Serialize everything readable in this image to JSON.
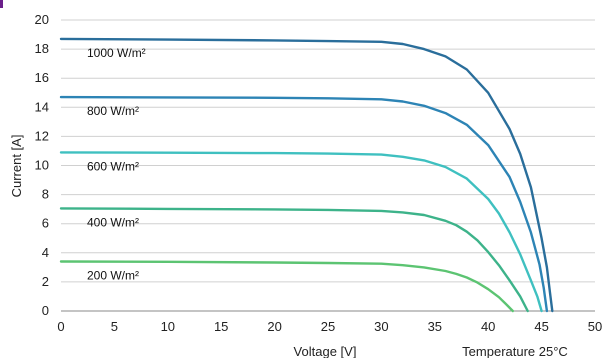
{
  "chart_data": {
    "type": "line",
    "xlabel": "Voltage [V]",
    "ylabel": "Current [A]",
    "note": "Temperature 25°C",
    "xlim": [
      0,
      50
    ],
    "ylim": [
      0,
      20
    ],
    "xticks": [
      0,
      5,
      10,
      15,
      20,
      25,
      30,
      35,
      40,
      45,
      50
    ],
    "yticks": [
      0,
      2,
      4,
      6,
      8,
      10,
      12,
      14,
      16,
      18,
      20
    ],
    "grid": "horizontal",
    "series": [
      {
        "name": "1000 W/m²",
        "color": "#2a6e9b",
        "x": [
          0,
          10,
          20,
          25,
          30,
          32,
          34,
          36,
          38,
          40,
          42,
          43,
          44,
          45,
          45.5,
          45.8,
          46.0
        ],
        "y": [
          18.7,
          18.65,
          18.6,
          18.55,
          18.5,
          18.35,
          18.0,
          17.5,
          16.6,
          15.0,
          12.5,
          10.8,
          8.5,
          5.0,
          3.0,
          1.2,
          0
        ]
      },
      {
        "name": "800 W/m²",
        "color": "#2d84b5",
        "x": [
          0,
          10,
          20,
          25,
          30,
          32,
          34,
          36,
          38,
          40,
          42,
          43,
          44,
          44.8,
          45.2,
          45.5
        ],
        "y": [
          14.7,
          14.68,
          14.65,
          14.62,
          14.55,
          14.4,
          14.1,
          13.6,
          12.8,
          11.4,
          9.2,
          7.5,
          5.4,
          3.2,
          1.6,
          0
        ]
      },
      {
        "name": "600 W/m²",
        "color": "#3fc0c0",
        "x": [
          0,
          10,
          20,
          25,
          30,
          32,
          34,
          36,
          38,
          40,
          41,
          42,
          43,
          44,
          44.6,
          45.0
        ],
        "y": [
          10.9,
          10.88,
          10.85,
          10.82,
          10.75,
          10.6,
          10.35,
          9.9,
          9.1,
          7.7,
          6.7,
          5.4,
          3.9,
          2.1,
          1.0,
          0
        ]
      },
      {
        "name": "400 W/m²",
        "color": "#3db38a",
        "x": [
          0,
          10,
          20,
          25,
          30,
          32,
          34,
          36,
          37,
          38,
          39,
          40,
          41,
          42,
          43,
          43.7
        ],
        "y": [
          7.05,
          7.02,
          6.98,
          6.95,
          6.88,
          6.78,
          6.6,
          6.2,
          5.9,
          5.45,
          4.85,
          4.05,
          3.15,
          2.1,
          1.0,
          0
        ]
      },
      {
        "name": "200 W/m²",
        "color": "#5cc472",
        "x": [
          0,
          10,
          20,
          25,
          30,
          32,
          34,
          36,
          37,
          38,
          39,
          40,
          41,
          41.7,
          42.3
        ],
        "y": [
          3.4,
          3.38,
          3.33,
          3.3,
          3.25,
          3.15,
          3.0,
          2.75,
          2.55,
          2.3,
          1.95,
          1.5,
          0.95,
          0.45,
          0
        ]
      }
    ]
  }
}
